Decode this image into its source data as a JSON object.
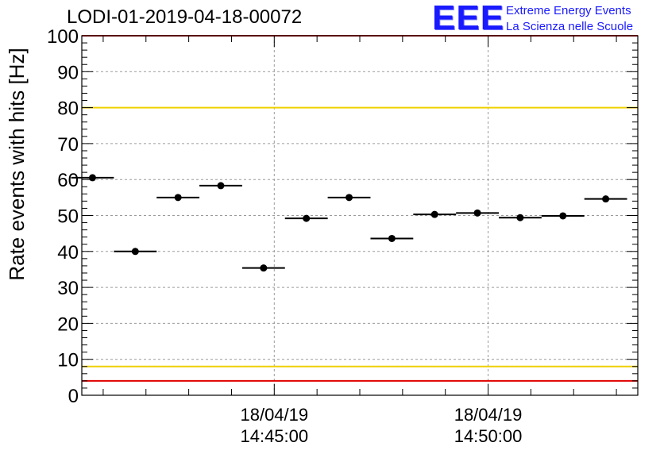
{
  "header": {
    "title": "LODI-01-2019-04-18-00072",
    "logo_mark": "EEE",
    "logo_line1": "Extreme Energy Events",
    "logo_line2": "La Scienza nelle Scuole"
  },
  "chart_data": {
    "type": "scatter",
    "title": "LODI-01-2019-04-18-00072",
    "ylabel": "Rate events with hits [Hz]",
    "xlabel": "",
    "ylim": [
      0,
      100
    ],
    "yticks": [
      0,
      10,
      20,
      30,
      40,
      50,
      60,
      70,
      80,
      90,
      100
    ],
    "xlim": [
      "2019-04-18 14:40:30",
      "2019-04-18 14:53:30"
    ],
    "xticks": [
      {
        "date": "18/04/19",
        "time": "14:45:00"
      },
      {
        "date": "18/04/19",
        "time": "14:50:00"
      }
    ],
    "grid": true,
    "series": [
      {
        "marker": "circle",
        "x": [
          "14:40:45",
          "14:41:45",
          "14:42:45",
          "14:43:45",
          "14:44:45",
          "14:45:45",
          "14:46:45",
          "14:47:45",
          "14:48:45",
          "14:49:45",
          "14:50:45",
          "14:51:45",
          "14:52:45"
        ],
        "y": [
          60.5,
          40.0,
          55.0,
          58.3,
          35.4,
          49.2,
          55.0,
          43.6,
          50.3,
          50.7,
          49.4,
          49.9,
          54.6
        ],
        "x_err_seconds": 30
      }
    ],
    "reference_lines": [
      {
        "y": 80,
        "color": "#f0d000"
      },
      {
        "y": 8,
        "color": "#f0d000"
      },
      {
        "y": 100,
        "color": "#e00000"
      },
      {
        "y": 4,
        "color": "#e00000"
      }
    ]
  }
}
